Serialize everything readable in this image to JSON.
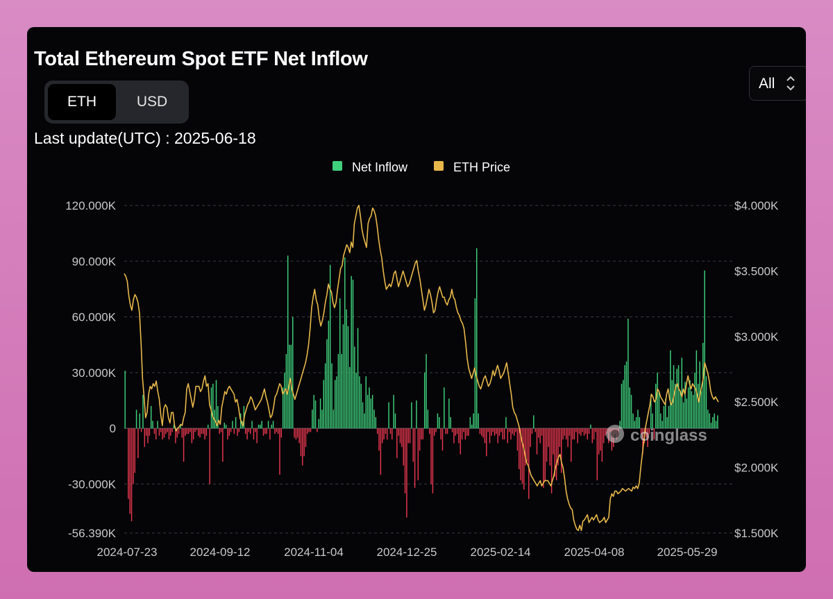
{
  "title": "Total Ethereum Spot ETF Net Inflow",
  "toggle": {
    "eth_label": "ETH",
    "usd_label": "USD",
    "active": "ETH"
  },
  "last_update": "Last update(UTC) : 2025-06-18",
  "range_select": {
    "value": "All"
  },
  "watermark": "coinglass",
  "colors": {
    "inflow": "#3fd27c",
    "outflow": "#e8374e",
    "price": "#e8b84a",
    "background": "#050508"
  },
  "chart_data": {
    "type": "bar",
    "title": "Total Ethereum Spot ETF Net Inflow",
    "legend": [
      {
        "name": "Net Inflow",
        "color": "#3fd27c"
      },
      {
        "name": "ETH Price",
        "color": "#e8b84a"
      }
    ],
    "legend_position": "top-center",
    "x_ticks": [
      "2024-07-23",
      "2024-09-12",
      "2024-11-04",
      "2024-12-25",
      "2025-02-14",
      "2025-04-08",
      "2025-05-29"
    ],
    "y_left": {
      "ticks": [
        "120.000K",
        "90.000K",
        "60.000K",
        "30.000K",
        "0",
        "-30.000K",
        "-56.390K"
      ],
      "min": -56390,
      "max": 120000
    },
    "y_right": {
      "ticks": [
        "$4.000K",
        "$3.500K",
        "$3.000K",
        "$2.500K",
        "$2.000K",
        "$1.500K"
      ],
      "min": 1500,
      "max": 4000
    },
    "grid": true,
    "series": [
      {
        "name": "Net Inflow",
        "type": "bar",
        "values": [
          31000,
          0,
          -38000,
          -46000,
          -50000,
          -30000,
          -24000,
          10000,
          -16000,
          8000,
          -2000,
          18000,
          -10000,
          -4000,
          -8000,
          -4000,
          12000,
          4000,
          -3000,
          -6000,
          4000,
          -4000,
          -2000,
          -6000,
          -5000,
          -3000,
          -2000,
          -6000,
          -4000,
          -2000,
          2000,
          -8000,
          -5000,
          -3000,
          2000,
          -5000,
          -18000,
          -4000,
          -3000,
          -3000,
          -2000,
          -8000,
          -6000,
          -2000,
          -1000,
          -4000,
          -5000,
          -3000,
          -3000,
          -6000,
          -4000,
          2000,
          -30000,
          22000,
          24000,
          10000,
          26000,
          12000,
          -3000,
          -2000,
          -18000,
          3000,
          2000,
          -6000,
          -4000,
          -2000,
          4000,
          -3000,
          6000,
          -4000,
          -2000,
          8000,
          4000,
          12000,
          -3000,
          -6000,
          -2000,
          -3000,
          4000,
          -6000,
          -2000,
          -8000,
          2000,
          2000,
          4000,
          -4000,
          -3000,
          -3000,
          4000,
          -6000,
          2000,
          4000,
          -3000,
          -2000,
          -3000,
          -25000,
          -5000,
          22000,
          30000,
          40000,
          93000,
          45000,
          45000,
          60000,
          -5000,
          -6000,
          -5000,
          -8000,
          -15000,
          -20000,
          -15000,
          -10000,
          -3000,
          -2000,
          -2000,
          10000,
          18000,
          15000,
          -2000,
          5000,
          16000,
          10000,
          26000,
          35000,
          48000,
          58000,
          88000,
          35000,
          10000,
          26000,
          28000,
          40000,
          70000,
          40000,
          56000,
          92000,
          64000,
          55000,
          33000,
          82000,
          80000,
          44000,
          30000,
          54000,
          28000,
          24000,
          14000,
          8000,
          28000,
          18000,
          22000,
          16000,
          18000,
          10000,
          6000,
          -3000,
          -12000,
          -25000,
          -8000,
          -6000,
          -3000,
          -6000,
          14000,
          -3000,
          -6000,
          18000,
          8000,
          -16000,
          -4000,
          -8000,
          -10000,
          -20000,
          -35000,
          -48000,
          -8000,
          -8000,
          14000,
          -18000,
          -32000,
          15000,
          -28000,
          -12000,
          -6000,
          -6000,
          30000,
          40000,
          10000,
          -3000,
          -30000,
          -35000,
          -4000,
          -2000,
          8000,
          6000,
          -6000,
          -12000,
          22000,
          -3000,
          -3000,
          16000,
          6000,
          -2000,
          -8000,
          -4000,
          -3000,
          -8000,
          -14000,
          -6000,
          -2000,
          -6000,
          -4000,
          -4000,
          6000,
          2000,
          8000,
          70000,
          97000,
          8000,
          -3000,
          -4000,
          -5000,
          -8000,
          -15000,
          -2000,
          -8000,
          -4000,
          -2000,
          -4000,
          -3000,
          -8000,
          -4000,
          -2000,
          -6000,
          -6000,
          6000,
          -8000,
          -2000,
          -6000,
          -3000,
          -4000,
          -2000,
          -12000,
          -22000,
          -28000,
          -30000,
          -33000,
          -20000,
          -18000,
          -38000,
          -10000,
          -3000,
          7000,
          -2000,
          -14000,
          -5000,
          -8000,
          -4000,
          -32000,
          -28000,
          -18000,
          -10000,
          -20000,
          -35000,
          -14000,
          -26000,
          -28000,
          -20000,
          -10000,
          -24000,
          -6000,
          -4000,
          -6000,
          -10000,
          -4000,
          -18000,
          -6000,
          -6000,
          -2000,
          -8000,
          -3000,
          -4000,
          -2000,
          -4000,
          -3000,
          -6000,
          -3000,
          2000,
          -8000,
          -6000,
          -2000,
          -28000,
          -14000,
          -12000,
          -18000,
          -8000,
          -4000,
          -3000,
          -8000,
          -2000,
          -12000,
          -10000,
          -3000,
          -6000,
          -4000,
          4000,
          24000,
          26000,
          34000,
          36000,
          59000,
          22000,
          18000,
          8000,
          4000,
          6000,
          10000,
          6000,
          -3000,
          -14000,
          -8000,
          -5000,
          -10000,
          -3000,
          18000,
          8000,
          -6000,
          24000,
          30000,
          20000,
          8000,
          4000,
          12000,
          16000,
          6000,
          12000,
          42000,
          26000,
          34000,
          24000,
          32000,
          34000,
          20000,
          38000,
          14000,
          25000,
          16000,
          22000,
          26000,
          20000,
          18000,
          30000,
          42000,
          24000,
          36000,
          20000,
          46000,
          85000,
          28000,
          10000,
          8000,
          3000,
          6000,
          8000,
          4000,
          7000
        ]
      },
      {
        "name": "ETH Price",
        "type": "line",
        "values": [
          3480,
          3460,
          3420,
          3310,
          3240,
          3200,
          3280,
          3320,
          3300,
          3260,
          3180,
          2960,
          2680,
          2540,
          2380,
          2420,
          2560,
          2620,
          2600,
          2640,
          2620,
          2660,
          2580,
          2520,
          2400,
          2320,
          2450,
          2480,
          2460,
          2380,
          2340,
          2420,
          2420,
          2320,
          2280,
          2300,
          2310,
          2330,
          2320,
          2380,
          2420,
          2600,
          2640,
          2580,
          2520,
          2460,
          2520,
          2620,
          2620,
          2620,
          2580,
          2600,
          2660,
          2700,
          2620,
          2640,
          2480,
          2440,
          2390,
          2370,
          2350,
          2320,
          2360,
          2330,
          2460,
          2520,
          2580,
          2560,
          2600,
          2620,
          2600,
          2580,
          2560,
          2500,
          2520,
          2460,
          2380,
          2340,
          2320,
          2400,
          2440,
          2480,
          2500,
          2540,
          2520,
          2480,
          2440,
          2460,
          2480,
          2500,
          2520,
          2560,
          2600,
          2540,
          2500,
          2440,
          2380,
          2400,
          2460,
          2540,
          2560,
          2600,
          2640,
          2620,
          2560,
          2580,
          2600,
          2560,
          2620,
          2680,
          2600,
          2560,
          2520,
          2560,
          2600,
          2640,
          2680,
          2720,
          2760,
          2800,
          2860,
          2940,
          3060,
          3220,
          3300,
          3360,
          3280,
          3240,
          3140,
          3080,
          3120,
          3180,
          3260,
          3320,
          3400,
          3360,
          3340,
          3260,
          3220,
          3260,
          3360,
          3440,
          3520,
          3540,
          3620,
          3660,
          3700,
          3680,
          3640,
          3720,
          3680,
          3860,
          3920,
          3980,
          4000,
          3920,
          3820,
          3760,
          3720,
          3680,
          3860,
          3900,
          3920,
          3980,
          3960,
          3920,
          3840,
          3740,
          3660,
          3600,
          3500,
          3420,
          3360,
          3380,
          3400,
          3380,
          3420,
          3480,
          3500,
          3440,
          3380,
          3420,
          3460,
          3500,
          3460,
          3420,
          3380,
          3400,
          3440,
          3480,
          3520,
          3560,
          3580,
          3500,
          3440,
          3360,
          3280,
          3200,
          3240,
          3300,
          3360,
          3320,
          3260,
          3180,
          3200,
          3280,
          3340,
          3380,
          3340,
          3300,
          3300,
          3260,
          3240,
          3280,
          3300,
          3360,
          3300,
          3280,
          3220,
          3180,
          3160,
          3120,
          3100,
          3060,
          2960,
          2840,
          2760,
          2720,
          2680,
          2720,
          2760,
          2700,
          2660,
          2620,
          2600,
          2640,
          2680,
          2700,
          2660,
          2620,
          2640,
          2680,
          2740,
          2700,
          2740,
          2780,
          2740,
          2680,
          2700,
          2720,
          2760,
          2800,
          2720,
          2640,
          2560,
          2460,
          2420,
          2400,
          2360,
          2320,
          2260,
          2200,
          2160,
          2100,
          2040,
          2020,
          1980,
          1940,
          1920,
          1900,
          1880,
          1860,
          1880,
          1900,
          1860,
          1880,
          1900,
          1900,
          1900,
          1880,
          1860,
          1900,
          1940,
          2000,
          2040,
          2080,
          2100,
          2040,
          2000,
          1920,
          1820,
          1760,
          1720,
          1690,
          1680,
          1600,
          1560,
          1530,
          1520,
          1560,
          1520,
          1590,
          1600,
          1620,
          1640,
          1580,
          1600,
          1620,
          1600,
          1620,
          1640,
          1600,
          1580,
          1590,
          1600,
          1620,
          1580,
          1600,
          1620,
          1760,
          1800,
          1780,
          1820,
          1820,
          1800,
          1810,
          1820,
          1840,
          1830,
          1820,
          1830,
          1840,
          1830,
          1820,
          1850,
          1840,
          1860,
          1840,
          1880,
          2000,
          2100,
          2200,
          2300,
          2360,
          2420,
          2480,
          2560,
          2540,
          2500,
          2520,
          2600,
          2580,
          2540,
          2520,
          2500,
          2480,
          2560,
          2600,
          2520,
          2480,
          2500,
          2560,
          2620,
          2640,
          2600,
          2580,
          2540,
          2600,
          2560,
          2640,
          2700,
          2640,
          2600,
          2640,
          2620,
          2600,
          2560,
          2500,
          2560,
          2620,
          2680,
          2800,
          2760,
          2720,
          2660,
          2580,
          2540,
          2520,
          2540,
          2520,
          2500
        ]
      }
    ]
  }
}
